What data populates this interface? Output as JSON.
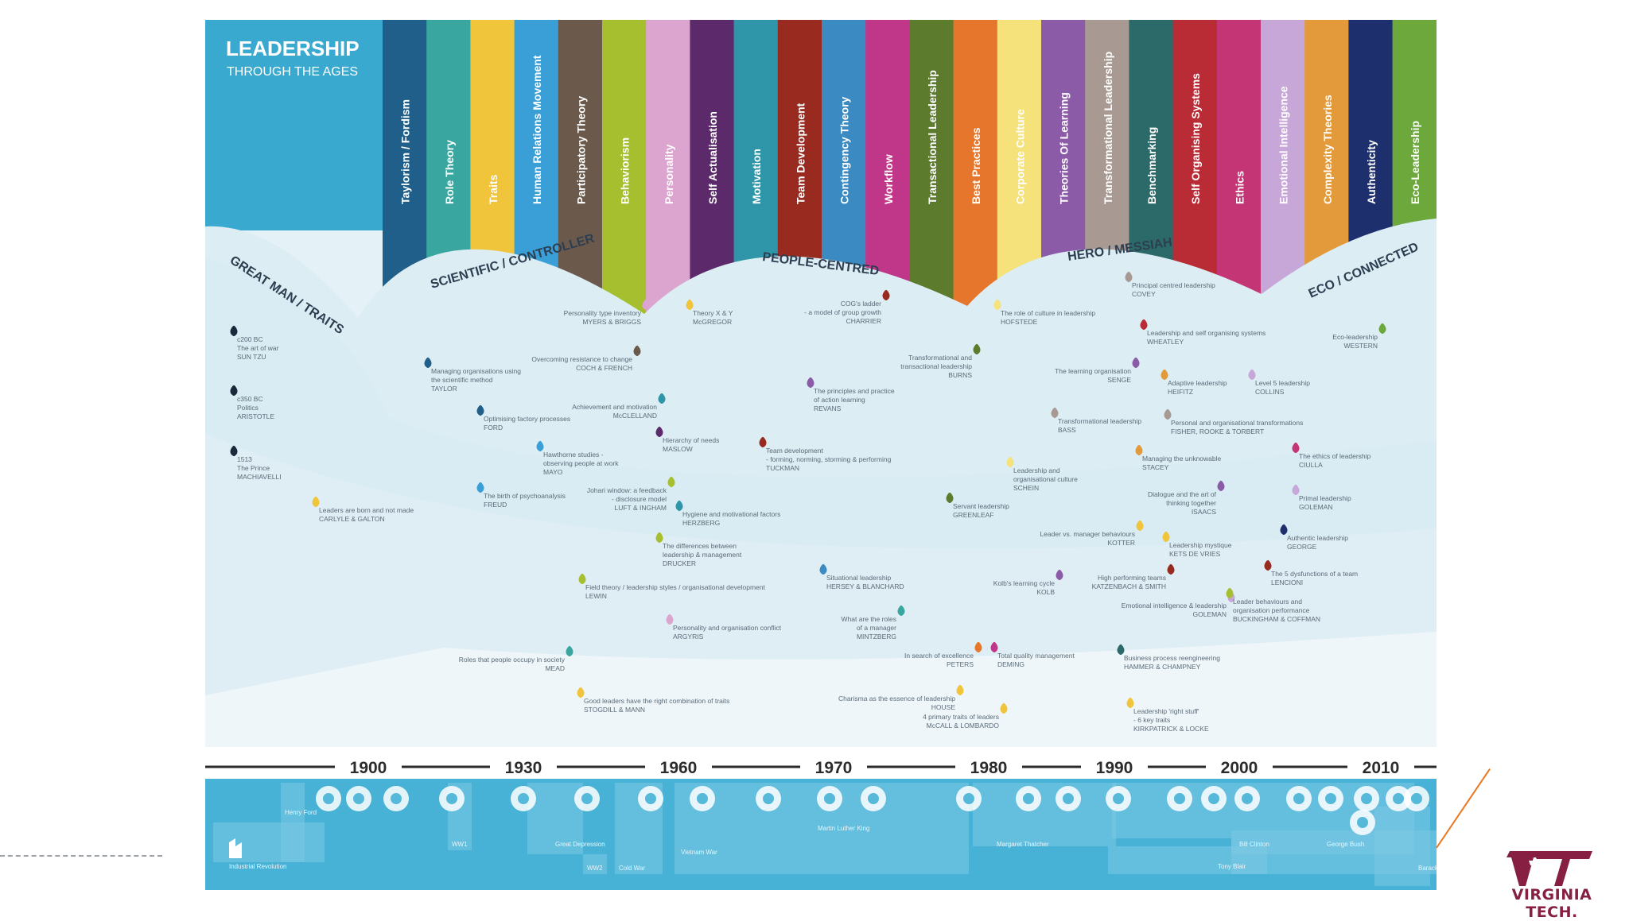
{
  "poster": {
    "title": "LEADERSHIP",
    "subtitle": "THROUGH THE AGES"
  },
  "themes": [
    {
      "label": "Taylorism / Fordism",
      "color": "#1f5f8a"
    },
    {
      "label": "Role Theory",
      "color": "#3aa6a0"
    },
    {
      "label": "Traits",
      "color": "#f0c43b"
    },
    {
      "label": "Human Relations Movement",
      "color": "#3a9fd6"
    },
    {
      "label": "Participatory Theory",
      "color": "#6b5a4b"
    },
    {
      "label": "Behaviorism",
      "color": "#a6bf2f"
    },
    {
      "label": "Personality",
      "color": "#dca5cf"
    },
    {
      "label": "Self Actualisation",
      "color": "#5c2a6a"
    },
    {
      "label": "Motivation",
      "color": "#2e96a8"
    },
    {
      "label": "Team Development",
      "color": "#992a1f"
    },
    {
      "label": "Contingency Theory",
      "color": "#3b8ac2"
    },
    {
      "label": "Workflow",
      "color": "#c0378a"
    },
    {
      "label": "Transactional Leadership",
      "color": "#5d7b2c"
    },
    {
      "label": "Best Practices",
      "color": "#e5762b"
    },
    {
      "label": "Corporate Culture",
      "color": "#f5e27a"
    },
    {
      "label": "Theories Of Learning",
      "color": "#8c5ba8"
    },
    {
      "label": "Transformational Leadership",
      "color": "#a89a93"
    },
    {
      "label": "Benchmarking",
      "color": "#2c6a69"
    },
    {
      "label": "Self Organising Systems",
      "color": "#b92c35"
    },
    {
      "label": "Ethics",
      "color": "#c43575"
    },
    {
      "label": "Emotional Intelligence",
      "color": "#c7a6d8"
    },
    {
      "label": "Complexity Theories",
      "color": "#e39a3b"
    },
    {
      "label": "Authenticity",
      "color": "#1e2f6e"
    },
    {
      "label": "Eco-Leadership",
      "color": "#6ca83c"
    }
  ],
  "eras": [
    {
      "label": "GREAT MAN / TRAITS"
    },
    {
      "label": "SCIENTIFIC / CONTROLLER"
    },
    {
      "label": "PEOPLE-CENTRED"
    },
    {
      "label": "HERO / MESSIAH"
    },
    {
      "label": "ECO / CONNECTED"
    }
  ],
  "theories": [
    {
      "lines": [
        "c200 BC",
        "The art of war",
        "SUN TZU"
      ],
      "color": "#1a2a3a"
    },
    {
      "lines": [
        "c350 BC",
        "Politics",
        "ARISTOTLE"
      ],
      "color": "#1a2a3a"
    },
    {
      "lines": [
        "1513",
        "The Prince",
        "MACHIAVELLI"
      ],
      "color": "#1a2a3a"
    },
    {
      "lines": [
        "Leaders are born and not made",
        "CARLYLE & GALTON"
      ],
      "color": "#f0c43b"
    },
    {
      "lines": [
        "Managing organisations using",
        "the scientific method",
        "TAYLOR"
      ],
      "color": "#1f5f8a"
    },
    {
      "lines": [
        "Optimising factory processes",
        "FORD"
      ],
      "color": "#1f5f8a"
    },
    {
      "lines": [
        "Hawthorne studies -",
        "observing people at work",
        "MAYO"
      ],
      "color": "#3a9fd6"
    },
    {
      "lines": [
        "The birth of psychoanalysis",
        "FREUD"
      ],
      "color": "#3a9fd6"
    },
    {
      "lines": [
        "Personality type inventory",
        "MYERS & BRIGGS"
      ],
      "color": "#dca5cf"
    },
    {
      "lines": [
        "Overcoming resistance to change",
        "COCH & FRENCH"
      ],
      "color": "#6b5a4b"
    },
    {
      "lines": [
        "Achievement and motivation",
        "McCLELLAND"
      ],
      "color": "#2e96a8"
    },
    {
      "lines": [
        "Hierarchy of needs",
        "MASLOW"
      ],
      "color": "#5c2a6a"
    },
    {
      "lines": [
        "Johari window: a feedback",
        "- disclosure model",
        "LUFT & INGHAM"
      ],
      "color": "#a6bf2f"
    },
    {
      "lines": [
        "Hygiene and motivational factors",
        "HERZBERG"
      ],
      "color": "#2e96a8"
    },
    {
      "lines": [
        "The differences between",
        "leadership & management",
        "DRUCKER"
      ],
      "color": "#a6bf2f"
    },
    {
      "lines": [
        "Field theory / leadership styles / organisational development",
        "LEWIN"
      ],
      "color": "#a6bf2f"
    },
    {
      "lines": [
        "Personality and organisation conflict",
        "ARGYRIS"
      ],
      "color": "#dca5cf"
    },
    {
      "lines": [
        "Roles that people occupy in society",
        "MEAD"
      ],
      "color": "#3aa6a0"
    },
    {
      "lines": [
        "Good leaders have the right combination of traits",
        "STOGDILL & MANN"
      ],
      "color": "#f0c43b"
    },
    {
      "lines": [
        "Theory X & Y",
        "McGREGOR"
      ],
      "color": "#f0c43b"
    },
    {
      "lines": [
        "COG's ladder",
        "- a model of group growth",
        "CHARRIER"
      ],
      "color": "#992a1f"
    },
    {
      "lines": [
        "Transformational and",
        "transactional leadership",
        "BURNS"
      ],
      "color": "#5d7b2c"
    },
    {
      "lines": [
        "The principles and practice",
        "of action learning",
        "REVANS"
      ],
      "color": "#8c5ba8"
    },
    {
      "lines": [
        "Team development",
        "- forming, norming, storming & performing",
        "TUCKMAN"
      ],
      "color": "#992a1f"
    },
    {
      "lines": [
        "Servant leadership",
        "GREENLEAF"
      ],
      "color": "#5d7b2c"
    },
    {
      "lines": [
        "Situational leadership",
        "HERSEY & BLANCHARD"
      ],
      "color": "#3b8ac2"
    },
    {
      "lines": [
        "What are the roles",
        "of a manager",
        "MINTZBERG"
      ],
      "color": "#3aa6a0"
    },
    {
      "lines": [
        "In search of excellence",
        "PETERS"
      ],
      "color": "#e5762b"
    },
    {
      "lines": [
        "Total quality management",
        "DEMING"
      ],
      "color": "#c0378a"
    },
    {
      "lines": [
        "Charisma as the essence of leadership",
        "HOUSE"
      ],
      "color": "#f0c43b"
    },
    {
      "lines": [
        "4 primary traits of leaders",
        "McCALL & LOMBARDO"
      ],
      "color": "#f0c43b"
    },
    {
      "lines": [
        "The role of culture in leadership",
        "HOFSTEDE"
      ],
      "color": "#f5e27a"
    },
    {
      "lines": [
        "Principal centred leadership",
        "COVEY"
      ],
      "color": "#a89a93"
    },
    {
      "lines": [
        "Leadership and self organising systems",
        "WHEATLEY"
      ],
      "color": "#b92c35"
    },
    {
      "lines": [
        "The learning organisation",
        "SENGE"
      ],
      "color": "#8c5ba8"
    },
    {
      "lines": [
        "Adaptive leadership",
        "HEIFITZ"
      ],
      "color": "#e39a3b"
    },
    {
      "lines": [
        "Level 5 leadership",
        "COLLINS"
      ],
      "color": "#c7a6d8"
    },
    {
      "lines": [
        "Transformational leadership",
        "BASS"
      ],
      "color": "#a89a93"
    },
    {
      "lines": [
        "Personal and organisational transformations",
        "FISHER, ROOKE & TORBERT"
      ],
      "color": "#a89a93"
    },
    {
      "lines": [
        "Managing the unknowable",
        "STACEY"
      ],
      "color": "#e39a3b"
    },
    {
      "lines": [
        "Leadership and",
        "organisational culture",
        "SCHEIN"
      ],
      "color": "#f5e27a"
    },
    {
      "lines": [
        "Dialogue and the art of",
        "thinking together",
        "ISAACS"
      ],
      "color": "#8c5ba8"
    },
    {
      "lines": [
        "The ethics of leadership",
        "CIULLA"
      ],
      "color": "#c43575"
    },
    {
      "lines": [
        "Primal leadership",
        "GOLEMAN"
      ],
      "color": "#c7a6d8"
    },
    {
      "lines": [
        "Leader vs. manager behaviours",
        "KOTTER"
      ],
      "color": "#f0c43b"
    },
    {
      "lines": [
        "Leadership mystique",
        "KETS DE VRIES"
      ],
      "color": "#f0c43b"
    },
    {
      "lines": [
        "Authentic leadership",
        "GEORGE"
      ],
      "color": "#1e2f6e"
    },
    {
      "lines": [
        "Kolb's learning cycle",
        "KOLB"
      ],
      "color": "#8c5ba8"
    },
    {
      "lines": [
        "High performing teams",
        "KATZENBACH & SMITH"
      ],
      "color": "#992a1f"
    },
    {
      "lines": [
        "The 5 dysfunctions of a team",
        "LENCIONI"
      ],
      "color": "#992a1f"
    },
    {
      "lines": [
        "Emotional intelligence & leadership",
        "GOLEMAN"
      ],
      "color": "#c7a6d8"
    },
    {
      "lines": [
        "Leader behaviours and",
        "organisation performance",
        "BUCKINGHAM & COFFMAN"
      ],
      "color": "#a6bf2f"
    },
    {
      "lines": [
        "Business process reengineering",
        "HAMMER & CHAMPNEY"
      ],
      "color": "#2c6a69"
    },
    {
      "lines": [
        "Leadership 'right stuff'",
        "- 6 key traits",
        "KIRKPATRICK & LOCKE"
      ],
      "color": "#f0c43b"
    },
    {
      "lines": [
        "Eco-leadership",
        "WESTERN"
      ],
      "color": "#6ca83c"
    }
  ],
  "timeline": {
    "years": [
      "1900",
      "1930",
      "1960",
      "1970",
      "1980",
      "1990",
      "2000",
      "2010"
    ]
  },
  "events": [
    "Industrial Revolution",
    "Henry Ford",
    "WW1",
    "Great Depression",
    "WW2",
    "Cold War",
    "Vietnam War",
    "Martin Luther King",
    "Margaret Thatcher",
    "Bill Clinton",
    "George Bush",
    "Tony Blair",
    "Barack Obama"
  ],
  "branding": {
    "name": "VIRGINIA TECH.",
    "color": "#861f41",
    "accent": "#e87722"
  }
}
